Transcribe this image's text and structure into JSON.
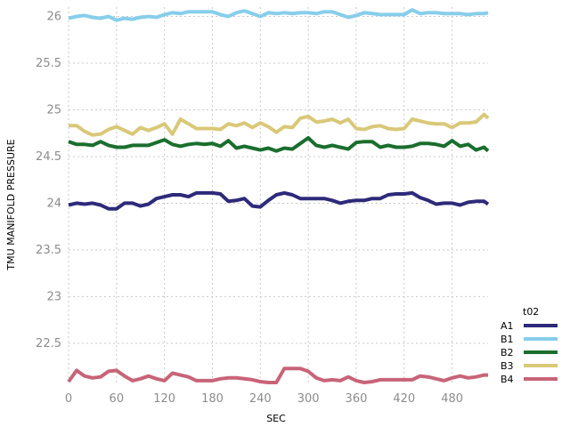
{
  "chart_data": {
    "type": "line",
    "title": "",
    "xlabel": "SEC",
    "ylabel": "TMU MANIFOLD PRESSURE",
    "xlim": [
      0,
      525
    ],
    "ylim": [
      22.08,
      26.1
    ],
    "xticks": [
      0,
      60,
      120,
      180,
      240,
      300,
      360,
      420,
      480
    ],
    "yticks": [
      22.5,
      23,
      23.5,
      24,
      24.5,
      25,
      25.5,
      26
    ],
    "grid": true,
    "legend": {
      "title": "t02",
      "position": "right-bottom"
    },
    "x": [
      0,
      10,
      20,
      30,
      40,
      50,
      60,
      70,
      80,
      90,
      100,
      110,
      120,
      130,
      140,
      150,
      160,
      170,
      180,
      190,
      200,
      210,
      220,
      230,
      240,
      250,
      260,
      270,
      280,
      290,
      300,
      310,
      320,
      330,
      340,
      350,
      360,
      370,
      380,
      390,
      400,
      410,
      420,
      430,
      440,
      450,
      460,
      470,
      480,
      490,
      500,
      510,
      520,
      525
    ],
    "series": [
      {
        "name": "A1",
        "color": "#2e2a7a",
        "values": [
          23.98,
          24.0,
          23.99,
          24.0,
          23.98,
          23.94,
          23.94,
          24.0,
          24.0,
          23.97,
          23.99,
          24.05,
          24.07,
          24.09,
          24.09,
          24.07,
          24.11,
          24.11,
          24.11,
          24.1,
          24.02,
          24.03,
          24.05,
          23.97,
          23.96,
          24.03,
          24.09,
          24.11,
          24.09,
          24.05,
          24.05,
          24.05,
          24.05,
          24.03,
          24.0,
          24.02,
          24.03,
          24.03,
          24.05,
          24.05,
          24.09,
          24.1,
          24.1,
          24.11,
          24.06,
          24.03,
          23.99,
          24.0,
          24.0,
          23.98,
          24.01,
          24.02,
          24.02,
          23.99
        ]
      },
      {
        "name": "B1",
        "color": "#87ceeb",
        "values": [
          25.98,
          26.0,
          26.01,
          25.99,
          25.98,
          26.0,
          25.96,
          25.98,
          25.97,
          25.99,
          26.0,
          25.99,
          26.02,
          26.04,
          26.03,
          26.05,
          26.05,
          26.05,
          26.05,
          26.02,
          26.0,
          26.04,
          26.06,
          26.03,
          26.0,
          26.04,
          26.03,
          26.04,
          26.03,
          26.04,
          26.04,
          26.03,
          26.05,
          26.05,
          26.02,
          25.99,
          26.01,
          26.04,
          26.03,
          26.02,
          26.02,
          26.02,
          26.02,
          26.07,
          26.03,
          26.04,
          26.04,
          26.03,
          26.03,
          26.03,
          26.02,
          26.03,
          26.03,
          26.04
        ]
      },
      {
        "name": "B2",
        "color": "#1a6e2e",
        "values": [
          24.66,
          24.63,
          24.63,
          24.62,
          24.66,
          24.62,
          24.6,
          24.6,
          24.62,
          24.62,
          24.62,
          24.65,
          24.68,
          24.63,
          24.61,
          24.63,
          24.64,
          24.63,
          24.64,
          24.61,
          24.67,
          24.59,
          24.61,
          24.59,
          24.57,
          24.59,
          24.56,
          24.59,
          24.58,
          24.64,
          24.7,
          24.62,
          24.6,
          24.62,
          24.6,
          24.58,
          24.65,
          24.66,
          24.66,
          24.6,
          24.62,
          24.6,
          24.6,
          24.61,
          24.64,
          24.64,
          24.63,
          24.61,
          24.67,
          24.61,
          24.63,
          24.57,
          24.6,
          24.56
        ]
      },
      {
        "name": "B3",
        "color": "#d9c878",
        "values": [
          24.83,
          24.83,
          24.77,
          24.73,
          24.74,
          24.79,
          24.82,
          24.78,
          24.74,
          24.81,
          24.78,
          24.81,
          24.85,
          24.74,
          24.9,
          24.85,
          24.8,
          24.8,
          24.8,
          24.79,
          24.85,
          24.83,
          24.86,
          24.81,
          24.86,
          24.82,
          24.76,
          24.82,
          24.81,
          24.91,
          24.93,
          24.87,
          24.88,
          24.9,
          24.86,
          24.9,
          24.8,
          24.79,
          24.82,
          24.83,
          24.8,
          24.79,
          24.8,
          24.9,
          24.88,
          24.86,
          24.85,
          24.85,
          24.81,
          24.86,
          24.86,
          24.87,
          24.95,
          24.91
        ]
      },
      {
        "name": "B4",
        "color": "#c86478",
        "values": [
          22.09,
          22.21,
          22.15,
          22.13,
          22.14,
          22.2,
          22.21,
          22.15,
          22.1,
          22.12,
          22.15,
          22.12,
          22.1,
          22.18,
          22.16,
          22.14,
          22.1,
          22.1,
          22.1,
          22.12,
          22.13,
          22.13,
          22.12,
          22.11,
          22.09,
          22.08,
          22.08,
          22.23,
          22.23,
          22.23,
          22.2,
          22.13,
          22.1,
          22.11,
          22.1,
          22.14,
          22.1,
          22.08,
          22.09,
          22.11,
          22.11,
          22.11,
          22.11,
          22.11,
          22.15,
          22.14,
          22.12,
          22.1,
          22.13,
          22.15,
          22.13,
          22.14,
          22.16,
          22.16
        ]
      }
    ]
  }
}
